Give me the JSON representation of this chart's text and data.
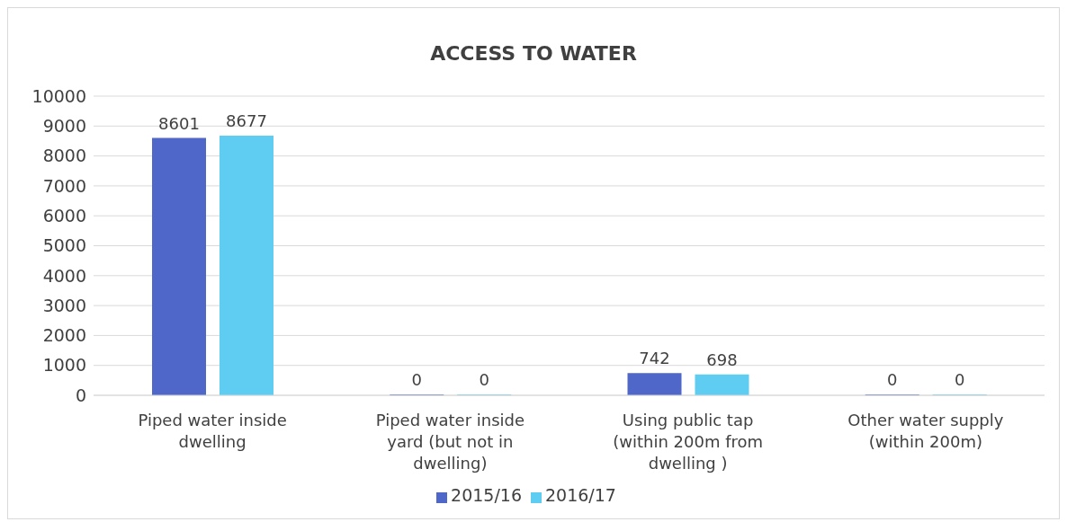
{
  "chart_data": {
    "type": "bar",
    "title": "ACCESS TO WATER",
    "categories": [
      "Piped water inside dwelling",
      "Piped water inside yard (but not in dwelling)",
      "Using public tap (within 200m from dwelling )",
      "Other water supply (within 200m)"
    ],
    "series": [
      {
        "name": "2015/16",
        "color": "#4f67c9",
        "values": [
          8601,
          0,
          742,
          0
        ]
      },
      {
        "name": "2016/17",
        "color": "#5ecdf1",
        "values": [
          8677,
          0,
          698,
          0
        ]
      }
    ],
    "ylim": [
      0,
      10000
    ],
    "yticks": [
      0,
      1000,
      2000,
      3000,
      4000,
      5000,
      6000,
      7000,
      8000,
      9000,
      10000
    ],
    "grid": "y",
    "legend": "bottom",
    "data_labels": true
  }
}
